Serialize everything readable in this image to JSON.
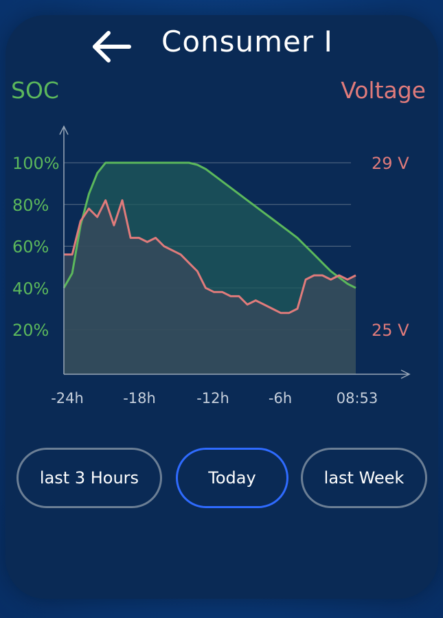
{
  "header": {
    "title": "Consumer I",
    "back_icon": "arrow-left-icon"
  },
  "labels": {
    "left_axis": "SOC",
    "right_axis": "Voltage"
  },
  "colors": {
    "soc": "#5cb85c",
    "voltage": "#e07b7b",
    "active_border": "#2f6bff"
  },
  "chart_data": {
    "type": "line",
    "x_labels": [
      "-24h",
      "-18h",
      "-12h",
      "-6h",
      "08:53"
    ],
    "y_left_ticks": [
      "100%",
      "80%",
      "60%",
      "40%",
      "20%"
    ],
    "y_right_ticks": [
      "29 V",
      "25 V"
    ],
    "series": [
      {
        "name": "SOC",
        "values": [
          40,
          47,
          70,
          85,
          95,
          100,
          100,
          100,
          100,
          100,
          100,
          100,
          100,
          100,
          100,
          100,
          99,
          97,
          94,
          91,
          88,
          85,
          82,
          79,
          76,
          73,
          70,
          67,
          64,
          60,
          56,
          52,
          48,
          45,
          42,
          40
        ]
      },
      {
        "name": "Voltage",
        "values": [
          26.8,
          26.8,
          27.6,
          27.9,
          27.7,
          28.1,
          27.5,
          28.1,
          27.2,
          27.2,
          27.1,
          27.2,
          27.0,
          26.9,
          26.8,
          26.6,
          26.4,
          26.0,
          25.9,
          25.9,
          25.8,
          25.8,
          25.6,
          25.7,
          25.6,
          25.5,
          25.4,
          25.4,
          25.5,
          26.2,
          26.3,
          26.3,
          26.2,
          26.3,
          26.2,
          26.3
        ]
      }
    ]
  },
  "buttons": [
    {
      "label": "last 3 Hours",
      "active": false
    },
    {
      "label": "Today",
      "active": true
    },
    {
      "label": "last Week",
      "active": false
    }
  ]
}
